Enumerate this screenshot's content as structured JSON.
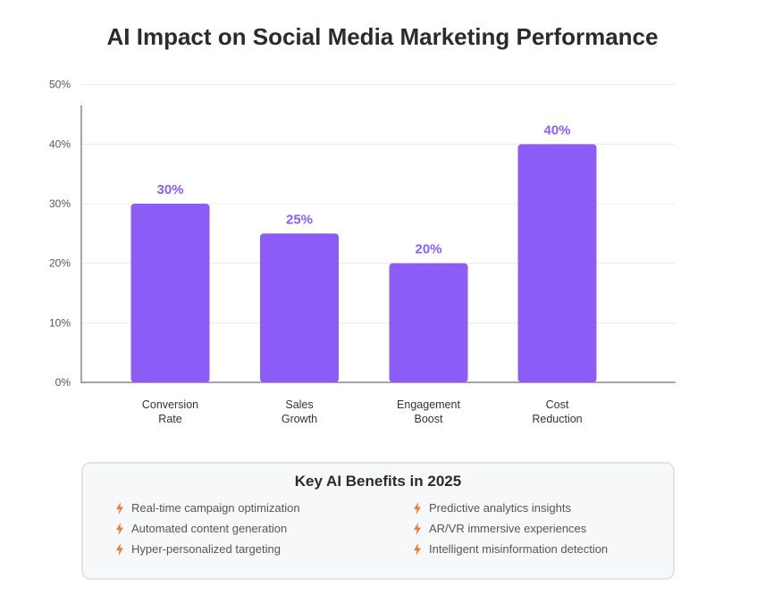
{
  "chart_data": {
    "type": "bar",
    "title": "AI Impact on Social Media Marketing Performance",
    "categories": [
      [
        "Conversion",
        "Rate"
      ],
      [
        "Sales",
        "Growth"
      ],
      [
        "Engagement",
        "Boost"
      ],
      [
        "Cost",
        "Reduction"
      ]
    ],
    "values": [
      30,
      25,
      20,
      40
    ],
    "data_labels": [
      "30%",
      "25%",
      "20%",
      "40%"
    ],
    "y_ticks": [
      0,
      10,
      20,
      30,
      40,
      50
    ],
    "y_tick_labels": [
      "0%",
      "10%",
      "20%",
      "30%",
      "40%",
      "50%"
    ],
    "ylim": [
      0,
      53
    ],
    "xlabel": "",
    "ylabel": "",
    "grid": true,
    "bar_color": "#8b5cf6",
    "label_color": "#8b5cf6"
  },
  "benefits": {
    "title": "Key AI Benefits in 2025",
    "icon": "bolt-icon",
    "icon_color": "#f07a3e",
    "left": [
      "Real-time campaign optimization",
      "Automated content generation",
      "Hyper-personalized targeting"
    ],
    "right": [
      "Predictive analytics insights",
      "AR/VR immersive experiences",
      "Intelligent misinformation detection"
    ]
  }
}
